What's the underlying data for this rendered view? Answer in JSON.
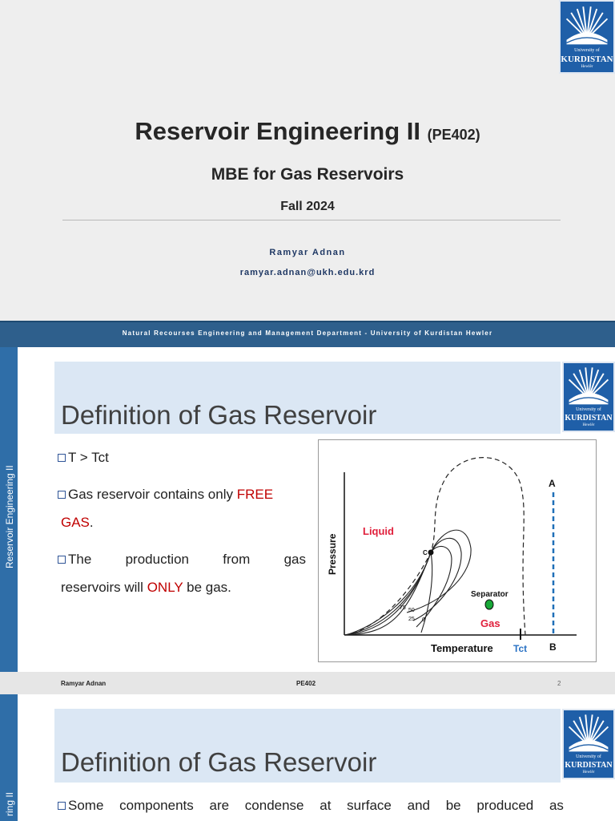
{
  "slide1": {
    "title": "Reservoir Engineering II",
    "course_code": "(PE402)",
    "subtitle": "MBE for Gas Reservoirs",
    "term": "Fall 2024",
    "author": "Ramyar Adnan",
    "email": "ramyar.adnan@ukh.edu.krd",
    "logo": {
      "line1": "University of",
      "line2": "KURDISTAN",
      "line3": "Hewlêr"
    },
    "footer": "Natural Recourses Engineering and Management Department - University of Kurdistan Hewler"
  },
  "slide2": {
    "sidebar_label": "Reservoir Engineering II",
    "title": "Definition of Gas Reservoir",
    "bullets": {
      "b1": "T > Tct",
      "b2_pre": "Gas reservoir contains only ",
      "b2_hl1": "FREE",
      "b2_hl2": "GAS",
      "b2_post": ".",
      "b3_line1_w1": "The",
      "b3_line1_w2": "production",
      "b3_line1_w3": "from",
      "b3_line1_w4": "gas",
      "b3_line2_pre": "reservoirs will ",
      "b3_line2_hl": "ONLY",
      "b3_line2_post": " be gas."
    },
    "footer": {
      "author": "Ramyar Adnan",
      "course": "PE402",
      "page": "2"
    },
    "logo": {
      "line1": "University of",
      "line2": "KURDISTAN",
      "line3": "Hewlêr"
    }
  },
  "diagram": {
    "xlabel": "Temperature",
    "ylabel": "Pressure",
    "liquid": "Liquid",
    "gas": "Gas",
    "separator": "Separator",
    "tct": "Tct",
    "point_a": "A",
    "point_b": "B",
    "point_c": "C",
    "q75": "75",
    "q50": "50",
    "q25": "25",
    "q0": "0",
    "colors": {
      "liquid": "#e0203c",
      "gas": "#e0203c",
      "tct": "#2a72c4",
      "separator_dot": "#18a838",
      "path": "#1f6fb8"
    }
  },
  "slide3": {
    "sidebar_label": "ring II",
    "title": "Definition of Gas Reservoir",
    "bullet_words": [
      "Some",
      "components",
      "are",
      "condense",
      "at",
      "surface",
      "and",
      "be",
      "produced",
      "as"
    ],
    "logo": {
      "line1": "University of",
      "line2": "KURDISTAN",
      "line3": "Hewlêr"
    }
  }
}
